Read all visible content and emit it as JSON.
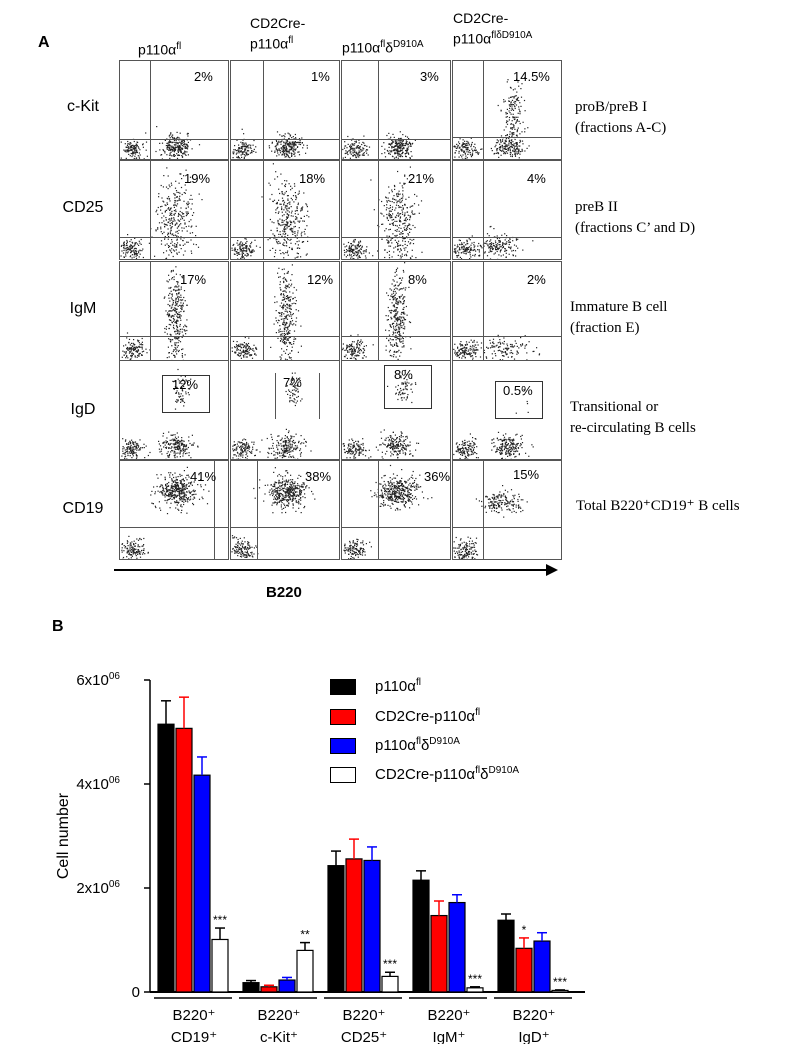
{
  "panel_a": {
    "letter": "A",
    "columns": [
      {
        "base": "p110α",
        "sup": "fl",
        "line2": "",
        "line2sup": ""
      },
      {
        "base": "CD2Cre-",
        "sup": "",
        "line2": "p110α",
        "line2sup": "fl"
      },
      {
        "base": "p110α",
        "sup": "fl",
        "mid": "δ",
        "sup2": "D910A",
        "line2": "",
        "line2sup": ""
      },
      {
        "base": "CD2Cre-",
        "sup": "",
        "line2": "p110α",
        "line2sup": "flδD910A"
      }
    ],
    "rows": [
      {
        "marker": "c-Kit",
        "percents": [
          "2%",
          "1%",
          "3%",
          "14.5%"
        ],
        "desc1": "proB/preB I",
        "desc2": "(fractions A-C)"
      },
      {
        "marker": "CD25",
        "percents": [
          "19%",
          "18%",
          "21%",
          "4%"
        ],
        "desc1": "preB II",
        "desc2": "(fractions C’ and D)"
      },
      {
        "marker": "IgM",
        "percents": [
          "17%",
          "12%",
          "8%",
          "2%"
        ],
        "desc1": "Immature B cell",
        "desc2": "(fraction E)"
      },
      {
        "marker": "IgD",
        "percents": [
          "12%",
          "7%",
          "8%",
          "0.5%"
        ],
        "desc1": "Transitional or",
        "desc2": "re-circulating B cells"
      },
      {
        "marker": "CD19",
        "percents": [
          "41%",
          "38%",
          "36%",
          "15%"
        ],
        "desc1": "Total B220⁺CD19⁺ B cells",
        "desc2": ""
      }
    ],
    "x_axis_title": "B220"
  },
  "panel_b": {
    "letter": "B"
  },
  "chart_data": {
    "type": "bar",
    "ylabel": "Cell number",
    "ylim": [
      0,
      6000000
    ],
    "yticks": [
      {
        "value": 0,
        "label": "0",
        "sup": ""
      },
      {
        "value": 2000000,
        "label": "2x10",
        "sup": "06"
      },
      {
        "value": 4000000,
        "label": "4x10",
        "sup": "06"
      },
      {
        "value": 6000000,
        "label": "6x10",
        "sup": "06"
      }
    ],
    "categories": [
      {
        "line1": "B220⁺",
        "line2": "CD19⁺"
      },
      {
        "line1": "B220⁺",
        "line2": "c-Kit⁺"
      },
      {
        "line1": "B220⁺",
        "line2": "CD25⁺"
      },
      {
        "line1": "B220⁺",
        "line2": "IgM⁺"
      },
      {
        "line1": "B220⁺",
        "line2": "IgD⁺"
      }
    ],
    "series": [
      {
        "name": "p110αfl",
        "legend_base": "p110α",
        "legend_sup": "fl",
        "legend_mid": "",
        "legend_sup2": "",
        "color": "#000000",
        "values": [
          5150000,
          180000,
          2430000,
          2150000,
          1380000
        ],
        "errors": [
          450000,
          40000,
          280000,
          180000,
          120000
        ],
        "marks": [
          "",
          "",
          "",
          "",
          ""
        ]
      },
      {
        "name": "CD2Cre-p110αfl",
        "legend_base": "CD2Cre-p110α",
        "legend_sup": "fl",
        "legend_mid": "",
        "legend_sup2": "",
        "color": "#ff0000",
        "values": [
          5070000,
          100000,
          2560000,
          1470000,
          840000
        ],
        "errors": [
          600000,
          30000,
          380000,
          280000,
          200000
        ],
        "marks": [
          "",
          "",
          "",
          "",
          "*"
        ]
      },
      {
        "name": "p110αflδD910A",
        "legend_base": "p110α",
        "legend_sup": "fl",
        "legend_mid": "δ",
        "legend_sup2": "D910A",
        "color": "#0000ff",
        "values": [
          4170000,
          230000,
          2530000,
          1720000,
          980000
        ],
        "errors": [
          350000,
          50000,
          260000,
          150000,
          160000
        ],
        "marks": [
          "",
          "",
          "",
          "",
          ""
        ]
      },
      {
        "name": "CD2Cre-p110αflδD910A",
        "legend_base": "CD2Cre-p110α",
        "legend_sup": "fl",
        "legend_mid": "δ",
        "legend_sup2": "D910A",
        "color": "#ffffff",
        "values": [
          1010000,
          800000,
          300000,
          80000,
          30000
        ],
        "errors": [
          220000,
          150000,
          80000,
          20000,
          10000
        ],
        "marks": [
          "***",
          "**",
          "***",
          "***",
          "***"
        ]
      }
    ]
  }
}
